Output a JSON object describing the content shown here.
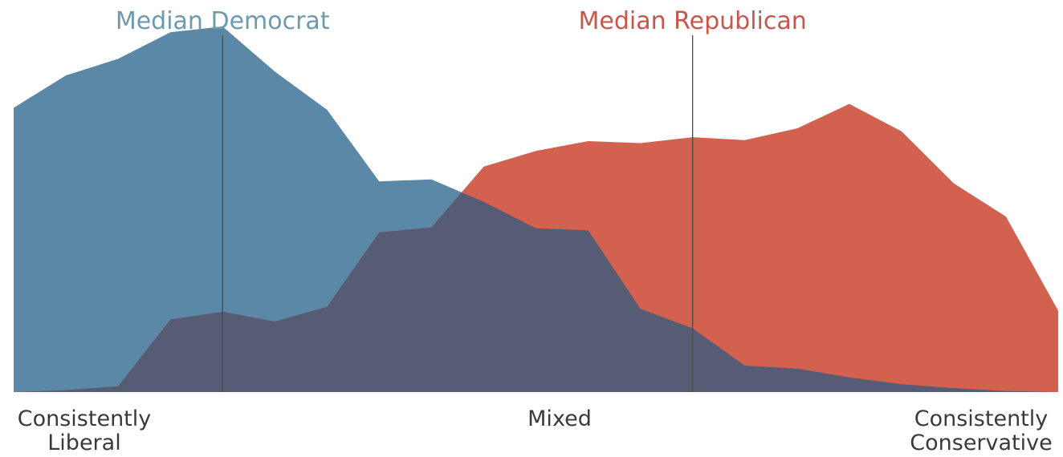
{
  "chart_data": {
    "type": "area",
    "x": [
      0,
      1,
      2,
      3,
      4,
      5,
      6,
      7,
      8,
      9,
      10,
      11,
      12,
      13,
      14,
      15,
      16,
      17,
      18,
      19,
      20
    ],
    "series": [
      {
        "name": "Democrats",
        "color": "#5b88a7",
        "values": [
          29.0,
          32.3,
          34.0,
          36.7,
          37.3,
          32.7,
          28.8,
          21.5,
          21.7,
          19.4,
          16.7,
          16.5,
          8.5,
          6.5,
          2.7,
          2.4,
          1.5,
          0.8,
          0.4,
          0.1,
          0.0
        ]
      },
      {
        "name": "Republicans",
        "color": "#d26150",
        "values": [
          0.0,
          0.2,
          0.6,
          7.4,
          8.2,
          7.2,
          8.7,
          16.3,
          16.8,
          23.0,
          24.6,
          25.6,
          25.4,
          26.0,
          25.7,
          26.9,
          29.4,
          26.6,
          21.3,
          17.9,
          8.3
        ]
      }
    ],
    "overlap_color": "#565c74",
    "ylim": [
      0,
      40
    ],
    "medians": [
      {
        "label": "Median Democrat",
        "x": 4,
        "color": "#6d9aae"
      },
      {
        "label": "Median Republican",
        "x": 13,
        "color": "#c9564a"
      }
    ],
    "axis_labels": {
      "left": [
        "Consistently",
        "Liberal"
      ],
      "center": "Mixed",
      "right": [
        "Consistently",
        "Conservative"
      ]
    }
  }
}
